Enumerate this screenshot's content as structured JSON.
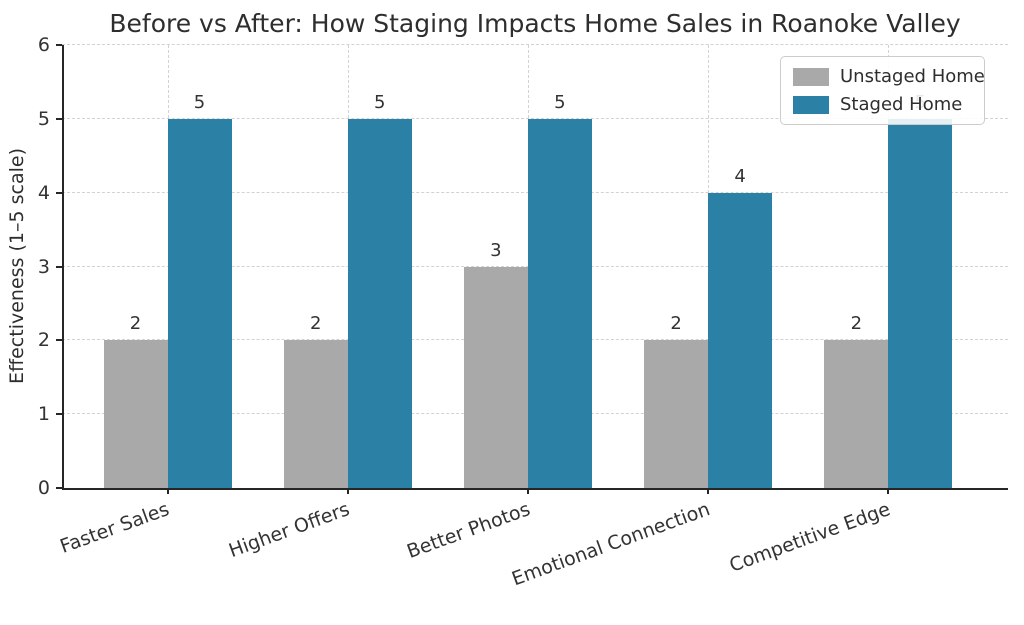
{
  "chart_data": {
    "type": "bar",
    "title": "Before vs After: How Staging Impacts Home Sales in Roanoke Valley",
    "ylabel": "Effectiveness (1–5 scale)",
    "xlabel": "",
    "categories": [
      "Faster Sales",
      "Higher Offers",
      "Better Photos",
      "Emotional Connection",
      "Competitive Edge"
    ],
    "series": [
      {
        "name": "Unstaged Home",
        "color": "#a9a9a9",
        "values": [
          2,
          2,
          3,
          2,
          2
        ]
      },
      {
        "name": "Staged Home",
        "color": "#2b80a5",
        "values": [
          5,
          5,
          5,
          4,
          5
        ]
      }
    ],
    "ylim": [
      0,
      6
    ],
    "yticks": [
      0,
      1,
      2,
      3,
      4,
      5,
      6
    ],
    "grid": true,
    "grid_style": "dashed",
    "bar_value_labels": true,
    "legend_position": "upper right",
    "colors": {
      "spine": "#262626",
      "gridline": "#d2d2d2",
      "text": "#2e2e2e",
      "background": "#ffffff"
    }
  }
}
